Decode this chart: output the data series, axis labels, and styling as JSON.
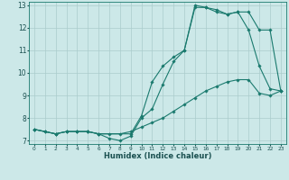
{
  "title": "",
  "xlabel": "Humidex (Indice chaleur)",
  "bg_color": "#cce8e8",
  "line_color": "#1a7a6e",
  "grid_color": "#aacccc",
  "xlim": [
    -0.5,
    23.5
  ],
  "ylim": [
    6.85,
    13.15
  ],
  "yticks": [
    7,
    8,
    9,
    10,
    11,
    12,
    13
  ],
  "xticks": [
    0,
    1,
    2,
    3,
    4,
    5,
    6,
    7,
    8,
    9,
    10,
    11,
    12,
    13,
    14,
    15,
    16,
    17,
    18,
    19,
    20,
    21,
    22,
    23
  ],
  "series1_x": [
    0,
    1,
    2,
    3,
    4,
    5,
    6,
    7,
    8,
    9,
    10,
    11,
    12,
    13,
    14,
    15,
    16,
    17,
    18,
    19,
    20,
    21,
    22,
    23
  ],
  "series1_y": [
    7.5,
    7.4,
    7.3,
    7.4,
    7.4,
    7.4,
    7.3,
    7.1,
    7.0,
    7.2,
    8.0,
    8.4,
    9.5,
    10.5,
    11.0,
    12.9,
    12.9,
    12.8,
    12.6,
    12.7,
    11.9,
    10.3,
    9.3,
    9.2
  ],
  "series2_x": [
    0,
    1,
    2,
    3,
    4,
    5,
    6,
    7,
    8,
    9,
    10,
    11,
    12,
    13,
    14,
    15,
    16,
    17,
    18,
    19,
    20,
    21,
    22,
    23
  ],
  "series2_y": [
    7.5,
    7.4,
    7.3,
    7.4,
    7.4,
    7.4,
    7.3,
    7.3,
    7.3,
    7.4,
    7.6,
    7.8,
    8.0,
    8.3,
    8.6,
    8.9,
    9.2,
    9.4,
    9.6,
    9.7,
    9.7,
    9.1,
    9.0,
    9.2
  ],
  "series3_x": [
    0,
    2,
    3,
    4,
    5,
    6,
    9,
    10,
    11,
    12,
    13,
    14,
    15,
    16,
    17,
    18,
    19,
    20,
    21,
    22,
    23
  ],
  "series3_y": [
    7.5,
    7.3,
    7.4,
    7.4,
    7.4,
    7.3,
    7.3,
    8.1,
    9.6,
    10.3,
    10.7,
    11.0,
    13.0,
    12.9,
    12.7,
    12.6,
    12.7,
    12.7,
    11.9,
    11.9,
    9.2
  ]
}
